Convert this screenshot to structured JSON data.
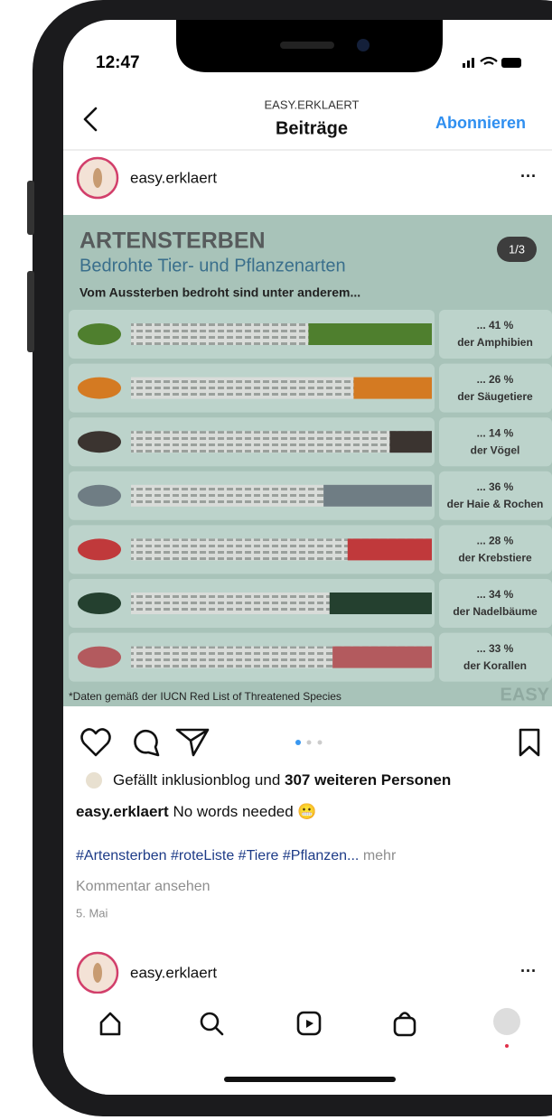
{
  "status_bar": {
    "time": "12:47"
  },
  "header": {
    "account": "EASY.ERKLAERT",
    "title": "Beiträge",
    "action": "Abonnieren"
  },
  "post": {
    "user": "easy.erklaert",
    "infographic": {
      "title": "ARTENSTERBEN",
      "subtitle": "Bedrohte Tier- und Pflanzenarten",
      "intro": "Vom Aussterben bedroht sind unter anderem...",
      "page": "1/3",
      "rows": [
        {
          "value": 41,
          "value_label": "... 41 %",
          "group": "der Amphibien",
          "color": "#4f7f2e"
        },
        {
          "value": 26,
          "value_label": "... 26 %",
          "group": "der Säugetiere",
          "color": "#d47a22"
        },
        {
          "value": 14,
          "value_label": "... 14 %",
          "group": "der Vögel",
          "color": "#3b3430"
        },
        {
          "value": 36,
          "value_label": "... 36 %",
          "group": "der Haie & Rochen",
          "color": "#6f7d84"
        },
        {
          "value": 28,
          "value_label": "... 28 %",
          "group": "der Krebstiere",
          "color": "#c0393b"
        },
        {
          "value": 34,
          "value_label": "... 34 %",
          "group": "der Nadelbäume",
          "color": "#24402f"
        },
        {
          "value": 33,
          "value_label": "... 33 %",
          "group": "der Korallen",
          "color": "#b35a5e"
        }
      ],
      "footnote": "*Daten gemäß der IUCN Red List of Threatened Species",
      "brand": "EASY"
    },
    "likes": {
      "prefix": "Gefällt",
      "user": "inklusionblog",
      "middle": "und",
      "count": "307 weiteren Personen"
    },
    "caption": {
      "user": "easy.erklaert",
      "text": "No words needed 😬"
    },
    "hashtags": "#Artensterben #roteListe #Tiere #Pflanzen...",
    "more": "mehr",
    "comments": "Kommentar ansehen",
    "date": "5. Mai"
  },
  "next_post": {
    "user": "easy.erklaert"
  }
}
